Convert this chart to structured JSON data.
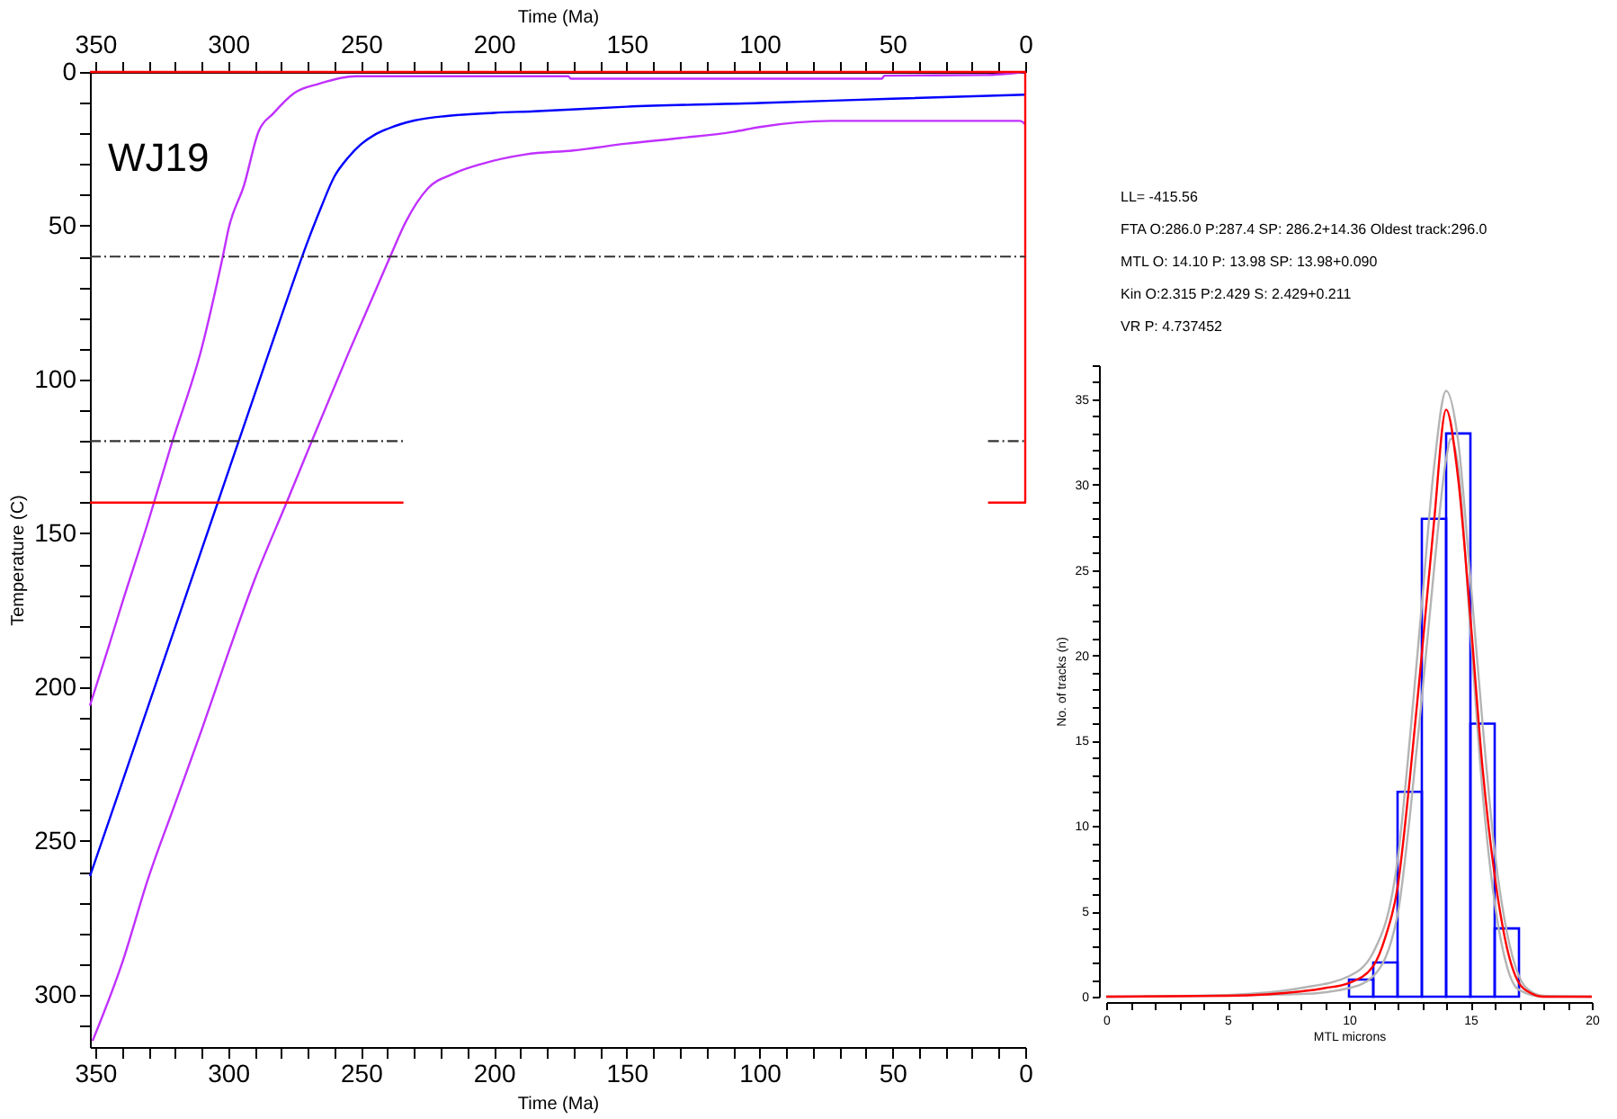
{
  "chart_data": [
    {
      "type": "line",
      "xlabel": "Time (Ma)",
      "x2label": "Time (Ma)",
      "ylabel": "Temperature (C)",
      "xlim": [
        352,
        0
      ],
      "x2lim": [
        352,
        0
      ],
      "ylim": [
        317,
        0
      ],
      "xticks": [
        350,
        {
          "value": 340,
          "label": null
        },
        {
          "value": 330,
          "label": null
        },
        {
          "value": 320,
          "label": null
        },
        {
          "value": 310,
          "label": null
        },
        300,
        {
          "value": 290,
          "label": null
        },
        {
          "value": 280,
          "label": null
        },
        {
          "value": 270,
          "label": null
        },
        {
          "value": 260,
          "label": null
        },
        250,
        {
          "value": 240,
          "label": null
        },
        {
          "value": 230,
          "label": null
        },
        {
          "value": 220,
          "label": null
        },
        {
          "value": 210,
          "label": null
        },
        200,
        {
          "value": 190,
          "label": null
        },
        {
          "value": 180,
          "label": null
        },
        {
          "value": 170,
          "label": null
        },
        {
          "value": 160,
          "label": null
        },
        150,
        {
          "value": 140,
          "label": null
        },
        {
          "value": 130,
          "label": null
        },
        {
          "value": 120,
          "label": null
        },
        {
          "value": 110,
          "label": null
        },
        100,
        {
          "value": 90,
          "label": null
        },
        {
          "value": 80,
          "label": null
        },
        {
          "value": 70,
          "label": null
        },
        {
          "value": 60,
          "label": null
        },
        50,
        {
          "value": 40,
          "label": null
        },
        {
          "value": 30,
          "label": null
        },
        {
          "value": 20,
          "label": null
        },
        {
          "value": 10,
          "label": null
        },
        0
      ],
      "x2ticks": [
        350,
        {
          "value": 340,
          "label": null
        },
        {
          "value": 330,
          "label": null
        },
        {
          "value": 320,
          "label": null
        },
        {
          "value": 310,
          "label": null
        },
        300,
        {
          "value": 290,
          "label": null
        },
        {
          "value": 280,
          "label": null
        },
        {
          "value": 270,
          "label": null
        },
        {
          "value": 260,
          "label": null
        },
        250,
        {
          "value": 240,
          "label": null
        },
        {
          "value": 230,
          "label": null
        },
        {
          "value": 220,
          "label": null
        },
        {
          "value": 210,
          "label": null
        },
        200,
        {
          "value": 190,
          "label": null
        },
        {
          "value": 180,
          "label": null
        },
        {
          "value": 170,
          "label": null
        },
        {
          "value": 160,
          "label": null
        },
        150,
        {
          "value": 140,
          "label": null
        },
        {
          "value": 130,
          "label": null
        },
        {
          "value": 120,
          "label": null
        },
        {
          "value": 110,
          "label": null
        },
        100,
        {
          "value": 90,
          "label": null
        },
        {
          "value": 80,
          "label": null
        },
        {
          "value": 70,
          "label": null
        },
        {
          "value": 60,
          "label": null
        },
        50,
        {
          "value": 40,
          "label": null
        },
        {
          "value": 30,
          "label": null
        },
        {
          "value": 20,
          "label": null
        },
        {
          "value": 10,
          "label": null
        },
        0
      ],
      "yticks": [
        0,
        {
          "value": 10,
          "label": null
        },
        {
          "value": 20,
          "label": null
        },
        {
          "value": 30,
          "label": null
        },
        {
          "value": 40,
          "label": null
        },
        50,
        {
          "value": 60,
          "label": null
        },
        {
          "value": 70,
          "label": null
        },
        {
          "value": 80,
          "label": null
        },
        {
          "value": 90,
          "label": null
        },
        100,
        {
          "value": 110,
          "label": null
        },
        {
          "value": 120,
          "label": null
        },
        {
          "value": 130,
          "label": null
        },
        {
          "value": 140,
          "label": null
        },
        150,
        {
          "value": 160,
          "label": null
        },
        {
          "value": 170,
          "label": null
        },
        {
          "value": 180,
          "label": null
        },
        {
          "value": 190,
          "label": null
        },
        200,
        {
          "value": 210,
          "label": null
        },
        {
          "value": 220,
          "label": null
        },
        {
          "value": 230,
          "label": null
        },
        {
          "value": 240,
          "label": null
        },
        250,
        {
          "value": 260,
          "label": null
        },
        {
          "value": 270,
          "label": null
        },
        {
          "value": 280,
          "label": null
        },
        {
          "value": 290,
          "label": null
        },
        300,
        {
          "value": 310,
          "label": null
        }
      ],
      "series": [
        {
          "type": "line",
          "color": "#c030ff",
          "x": [
            352,
            345,
            340,
            330,
            321.3,
            310,
            302,
            299.7,
            294,
            288.5,
            283,
            275,
            266,
            252,
            172,
            171,
            54,
            53,
            15,
            0
          ],
          "values": [
            206,
            187,
            173,
            146,
            121,
            90,
            60,
            50.5,
            36.8,
            19.3,
            13.5,
            6.8,
            3.9,
            1.4,
            1.4,
            2.2,
            2.2,
            1.2,
            1,
            0
          ]
        },
        {
          "type": "line",
          "color": "#0000ff",
          "x": [
            352,
            340,
            320,
            303.9,
            300,
            290,
            280,
            270,
            265,
            260,
            255,
            250,
            245,
            240,
            230,
            220,
            200,
            185,
            150,
            100,
            50,
            0
          ],
          "values": [
            261.5,
            231.3,
            180.7,
            140,
            130.1,
            104.8,
            79.5,
            55,
            44,
            34,
            28,
            23.5,
            20.5,
            18.5,
            15.8,
            14.5,
            13.3,
            12.8,
            11.3,
            10.1,
            8.7,
            7.4
          ]
        },
        {
          "type": "line",
          "color": "#c030ff",
          "x": [
            351,
            340,
            330,
            320,
            310,
            300,
            290,
            278,
            268.5,
            255,
            245,
            239,
            233,
            225,
            215,
            205,
            188,
            170,
            150,
            130,
            110,
            100,
            73,
            2,
            0
          ],
          "values": [
            315,
            290,
            262,
            238,
            214,
            189,
            165,
            140,
            120,
            92,
            72,
            60,
            48.5,
            38,
            33,
            30,
            26.8,
            25.5,
            23.3,
            21.5,
            19.5,
            17.9,
            15.9,
            15.9,
            17
          ]
        },
        {
          "type": "line",
          "color": "#ff0000",
          "x": [
            352,
            0,
            0,
            14,
            null,
            234,
            352
          ],
          "values": [
            0,
            0,
            140,
            140,
            null,
            140,
            140
          ]
        },
        {
          "type": "line",
          "color": "#333333",
          "line_style": "dashed",
          "x": [
            352,
            234,
            null,
            14,
            0
          ],
          "values": [
            120,
            120,
            null,
            120,
            120
          ]
        }
      ],
      "ref_lines": [
        {
          "axis": "y",
          "value": 60,
          "color": "#333333",
          "line_style": "dashed"
        }
      ],
      "annotations": [
        "WJ19"
      ],
      "grid": false
    },
    {
      "type": "histogram",
      "xlabel": "MTL microns",
      "ylabel": "No. of tracks (n)",
      "bins": [
        10,
        11,
        12,
        13,
        14,
        15,
        16,
        17
      ],
      "values": [
        1,
        2,
        12,
        28,
        33,
        16,
        4
      ],
      "color": "#0000ff",
      "xlim": [
        0,
        20
      ],
      "ylim": [
        0,
        37
      ],
      "xticks": [
        0,
        {
          "value": 1,
          "label": null
        },
        {
          "value": 2,
          "label": null
        },
        {
          "value": 3,
          "label": null
        },
        {
          "value": 4,
          "label": null
        },
        5,
        {
          "value": 6,
          "label": null
        },
        {
          "value": 7,
          "label": null
        },
        {
          "value": 8,
          "label": null
        },
        {
          "value": 9,
          "label": null
        },
        10,
        {
          "value": 11,
          "label": null
        },
        {
          "value": 12,
          "label": null
        },
        {
          "value": 13,
          "label": null
        },
        {
          "value": 14,
          "label": null
        },
        15,
        {
          "value": 16,
          "label": null
        },
        {
          "value": 17,
          "label": null
        },
        {
          "value": 18,
          "label": null
        },
        {
          "value": 19,
          "label": null
        },
        20
      ],
      "yticks": [
        0,
        {
          "value": 1,
          "label": null
        },
        {
          "value": 2,
          "label": null
        },
        {
          "value": 3,
          "label": null
        },
        {
          "value": 4,
          "label": null
        },
        5,
        {
          "value": 6,
          "label": null
        },
        {
          "value": 7,
          "label": null
        },
        {
          "value": 8,
          "label": null
        },
        {
          "value": 9,
          "label": null
        },
        10,
        {
          "value": 11,
          "label": null
        },
        {
          "value": 12,
          "label": null
        },
        {
          "value": 13,
          "label": null
        },
        {
          "value": 14,
          "label": null
        },
        15,
        {
          "value": 16,
          "label": null
        },
        {
          "value": 17,
          "label": null
        },
        {
          "value": 18,
          "label": null
        },
        {
          "value": 19,
          "label": null
        },
        20,
        {
          "value": 21,
          "label": null
        },
        {
          "value": 22,
          "label": null
        },
        {
          "value": 23,
          "label": null
        },
        {
          "value": 24,
          "label": null
        },
        25,
        {
          "value": 26,
          "label": null
        },
        {
          "value": 27,
          "label": null
        },
        {
          "value": 28,
          "label": null
        },
        {
          "value": 29,
          "label": null
        },
        30,
        {
          "value": 31,
          "label": null
        },
        {
          "value": 32,
          "label": null
        },
        {
          "value": 33,
          "label": null
        },
        {
          "value": 34,
          "label": null
        },
        35,
        {
          "value": 36,
          "label": null
        },
        {
          "value": 37,
          "label": null
        }
      ],
      "series": [
        {
          "type": "line",
          "color": "#b4b4b4",
          "x": [
            0,
            5,
            8,
            10,
            11,
            12,
            12.5,
            13,
            13.5,
            14,
            14.5,
            15,
            15.5,
            16,
            16.5,
            17,
            17.5,
            18,
            20
          ],
          "values": [
            0,
            0.1,
            0.5,
            1.2,
            2.6,
            8,
            15,
            23,
            31,
            35.5,
            32.5,
            24.5,
            16,
            8.5,
            3.8,
            1.2,
            0.3,
            0.05,
            0
          ]
        },
        {
          "type": "line",
          "color": "#b4b4b4",
          "x": [
            0,
            8,
            10,
            11,
            12,
            12.5,
            13,
            13.5,
            14,
            14.2,
            14.5,
            15,
            15.5,
            16,
            16.5,
            17,
            18,
            20
          ],
          "values": [
            0,
            0.15,
            0.5,
            1.2,
            4.8,
            10.5,
            17.5,
            25,
            31.5,
            32.7,
            31,
            21.5,
            12,
            5.5,
            1.8,
            0.4,
            0,
            0
          ]
        },
        {
          "type": "line",
          "color": "#ff0000",
          "x": [
            0,
            5,
            8,
            9,
            10,
            11,
            11.5,
            12,
            12.5,
            13,
            13.5,
            14,
            14.5,
            15,
            15.5,
            16,
            16.5,
            17,
            17.5,
            18,
            20
          ],
          "values": [
            0,
            0.05,
            0.3,
            0.5,
            0.8,
            1.8,
            3.5,
            6.4,
            12.7,
            20.1,
            27.8,
            34.4,
            30.3,
            22.2,
            13.4,
            7.1,
            2.9,
            0.8,
            0.2,
            0,
            0
          ]
        }
      ],
      "annotations": [
        "LL= -415.56",
        "FTA O:286.0 P:287.4 SP: 286.2+14.36 Oldest track:296.0",
        "MTL O: 14.10 P: 13.98 SP: 13.98+0.090",
        "Kin O:2.315 P:2.429 S: 2.429+0.211",
        "VR P: 4.737452"
      ],
      "grid": false
    }
  ]
}
